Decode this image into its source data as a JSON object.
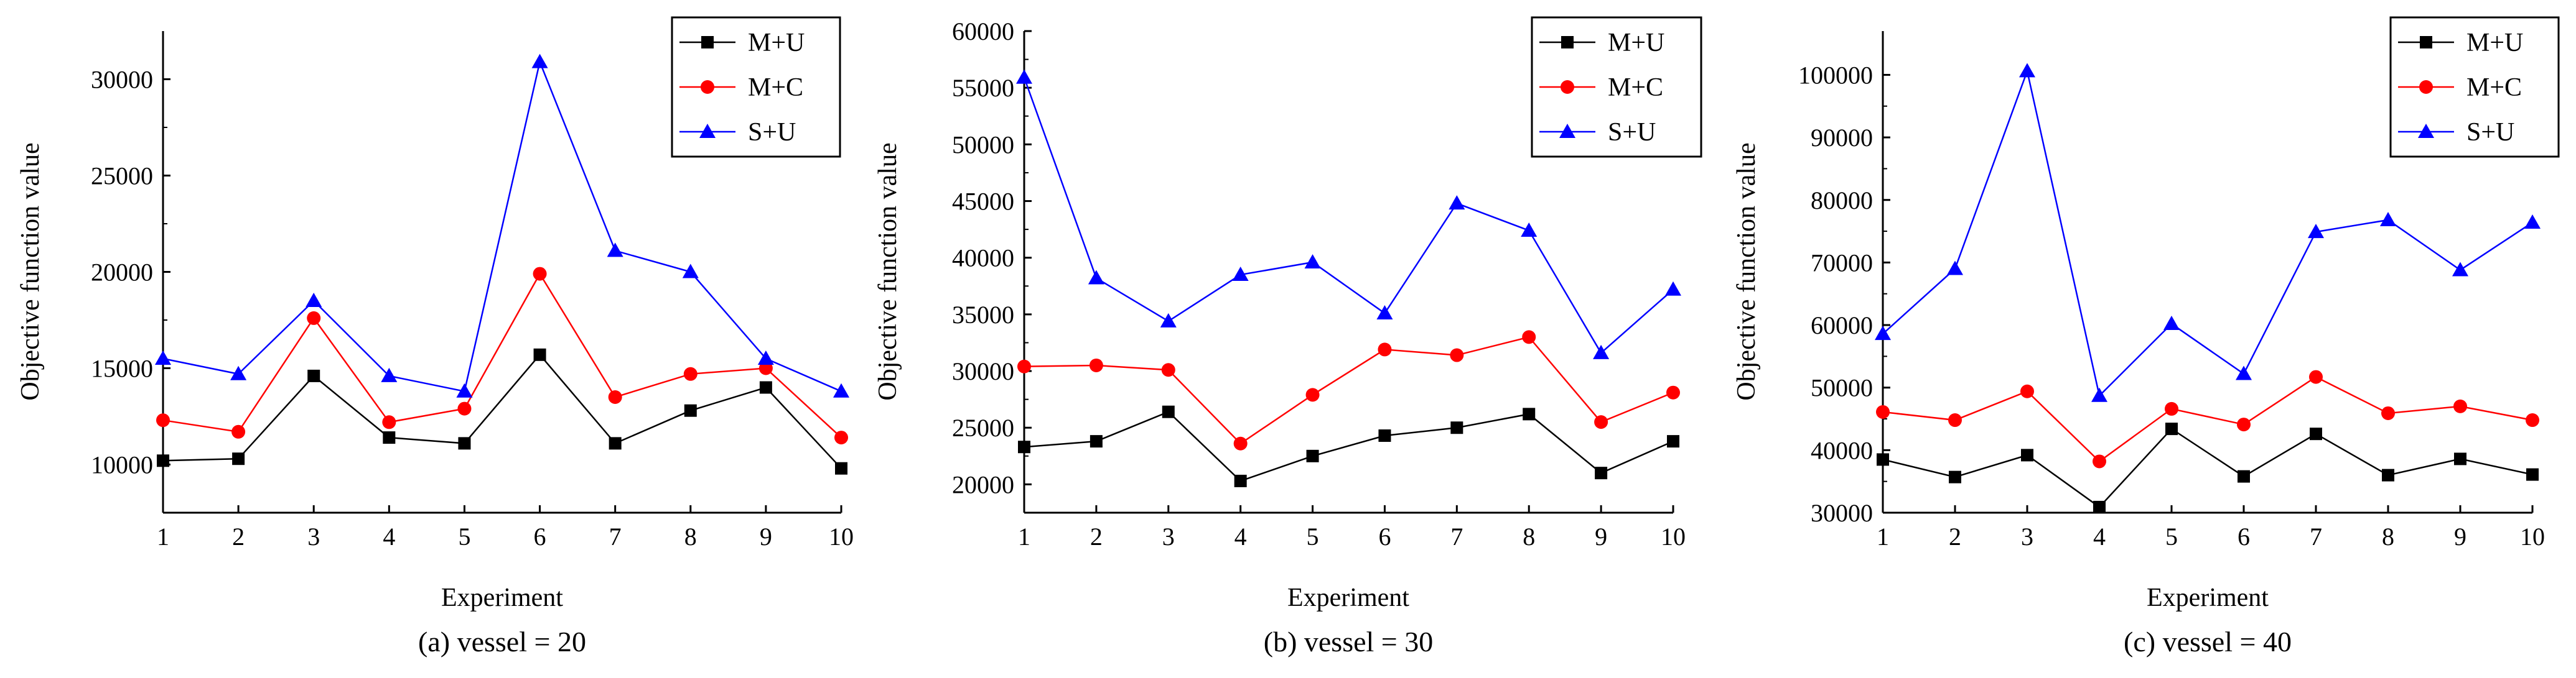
{
  "chart_data": [
    {
      "type": "line",
      "title": "",
      "caption": "(a) vessel = 20",
      "xlabel": "Experiment",
      "ylabel": "Objective function value",
      "xlim": [
        1,
        10
      ],
      "ylim": [
        7500,
        32500
      ],
      "x": [
        1,
        2,
        3,
        4,
        5,
        6,
        7,
        8,
        9,
        10
      ],
      "x_tick_labels": [
        "1",
        "2",
        "3",
        "4",
        "5",
        "6",
        "7",
        "8",
        "9",
        "10"
      ],
      "y_ticks": [
        10000,
        15000,
        20000,
        25000,
        30000
      ],
      "y_tick_labels": [
        "10000",
        "15000",
        "20000",
        "25000",
        "30000"
      ],
      "legend_position": "top-right",
      "series": [
        {
          "name": "M+U",
          "color": "#000000",
          "marker": "square",
          "values": [
            10200,
            10300,
            14600,
            11400,
            11100,
            15700,
            11100,
            12800,
            14000,
            9800
          ]
        },
        {
          "name": "M+C",
          "color": "#ff0000",
          "marker": "circle",
          "values": [
            12300,
            11700,
            17600,
            12200,
            12900,
            19900,
            13500,
            14700,
            15000,
            11400
          ]
        },
        {
          "name": "S+U",
          "color": "#0000ff",
          "marker": "triangle",
          "values": [
            15500,
            14700,
            18500,
            14600,
            13800,
            30900,
            21100,
            20000,
            15500,
            13800
          ]
        }
      ]
    },
    {
      "type": "line",
      "title": "",
      "caption": "(b) vessel = 30",
      "xlabel": "Experiment",
      "ylabel": "Objective function value",
      "xlim": [
        1,
        10
      ],
      "ylim": [
        17500,
        60000
      ],
      "x": [
        1,
        2,
        3,
        4,
        5,
        6,
        7,
        8,
        9,
        10
      ],
      "x_tick_labels": [
        "1",
        "2",
        "3",
        "4",
        "5",
        "6",
        "7",
        "8",
        "9",
        "10"
      ],
      "y_ticks": [
        20000,
        25000,
        30000,
        35000,
        40000,
        45000,
        50000,
        55000,
        60000
      ],
      "y_tick_labels": [
        "20000",
        "25000",
        "30000",
        "35000",
        "40000",
        "45000",
        "50000",
        "55000",
        "60000"
      ],
      "legend_position": "top-right",
      "series": [
        {
          "name": "M+U",
          "color": "#000000",
          "marker": "square",
          "values": [
            23300,
            23800,
            26400,
            20300,
            22500,
            24300,
            25000,
            26200,
            21000,
            23800
          ]
        },
        {
          "name": "M+C",
          "color": "#ff0000",
          "marker": "circle",
          "values": [
            30400,
            30500,
            30100,
            23600,
            27900,
            31900,
            31400,
            33000,
            25500,
            28100
          ]
        },
        {
          "name": "S+U",
          "color": "#0000ff",
          "marker": "triangle",
          "values": [
            55900,
            38200,
            34400,
            38500,
            39600,
            35100,
            44800,
            42400,
            31600,
            37200
          ]
        }
      ]
    },
    {
      "type": "line",
      "title": "",
      "caption": "(c) vessel = 40",
      "xlabel": "Experiment",
      "ylabel": "Objective function value",
      "xlim": [
        1,
        10
      ],
      "ylim": [
        30000,
        107000
      ],
      "x": [
        1,
        2,
        3,
        4,
        5,
        6,
        7,
        8,
        9,
        10
      ],
      "x_tick_labels": [
        "1",
        "2",
        "3",
        "4",
        "5",
        "6",
        "7",
        "8",
        "9",
        "10"
      ],
      "y_ticks": [
        30000,
        40000,
        50000,
        60000,
        70000,
        80000,
        90000,
        100000
      ],
      "y_tick_labels": [
        "30000",
        "40000",
        "50000",
        "60000",
        "70000",
        "80000",
        "90000",
        "100000"
      ],
      "legend_position": "top-right",
      "series": [
        {
          "name": "M+U",
          "color": "#000000",
          "marker": "square",
          "values": [
            38500,
            35700,
            39200,
            30900,
            43400,
            35800,
            42600,
            36000,
            38600,
            36100
          ]
        },
        {
          "name": "M+C",
          "color": "#ff0000",
          "marker": "circle",
          "values": [
            46100,
            44800,
            49400,
            38200,
            46600,
            44100,
            51700,
            45900,
            47000,
            44800
          ]
        },
        {
          "name": "S+U",
          "color": "#0000ff",
          "marker": "triangle",
          "values": [
            58600,
            69000,
            100600,
            48700,
            60200,
            52200,
            74900,
            76800,
            68800,
            76400
          ]
        }
      ]
    }
  ]
}
